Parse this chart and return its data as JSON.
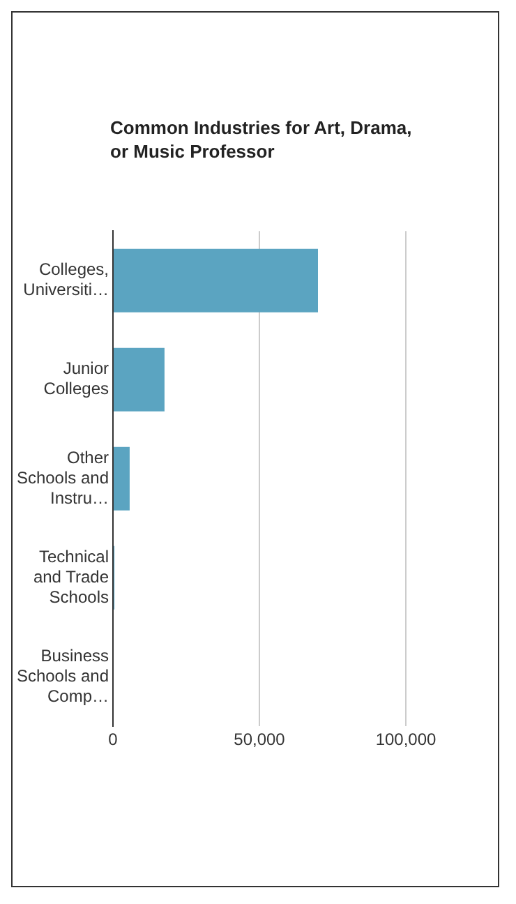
{
  "chart_data": {
    "type": "bar",
    "orientation": "horizontal",
    "title": "Common Industries for Art, Drama, or Music Professor",
    "categories": [
      "Colleges, Universiti…",
      "Junior Colleges",
      "Other Schools and Instru…",
      "Technical and Trade Schools",
      "Business Schools and Comp…"
    ],
    "values": [
      70000,
      17600,
      5700,
      500,
      null
    ],
    "color": "#5ba4c1",
    "xlim": [
      0,
      100000
    ],
    "xticks": [
      {
        "value": 0,
        "label": "0"
      },
      {
        "value": 50000,
        "label": "50,000"
      },
      {
        "value": 100000,
        "label": "100,000"
      }
    ],
    "grid": "x",
    "legend": false
  }
}
